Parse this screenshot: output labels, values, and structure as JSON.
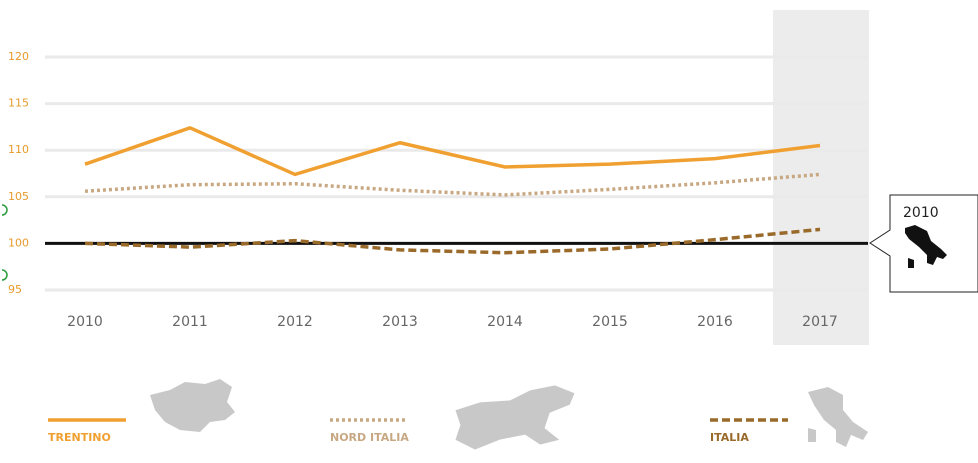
{
  "chart_data": {
    "type": "line",
    "categories": [
      "2010",
      "2011",
      "2012",
      "2013",
      "2014",
      "2015",
      "2016",
      "2017"
    ],
    "series": [
      {
        "name": "TRENTINO",
        "color": "#f0a030",
        "dash": "solid",
        "values": [
          108.5,
          112.4,
          107.4,
          110.8,
          108.2,
          108.5,
          109.1,
          110.5
        ]
      },
      {
        "name": "NORD ITALIA",
        "color": "#c8a882",
        "dash": "dotted",
        "values": [
          105.6,
          106.3,
          106.4,
          105.7,
          105.2,
          105.8,
          106.5,
          107.4
        ]
      },
      {
        "name": "ITALIA",
        "color": "#9a6a2a",
        "dash": "dashed",
        "values": [
          100,
          99.6,
          100.3,
          99.3,
          99.0,
          99.4,
          100.4,
          101.5
        ]
      }
    ],
    "ylim": [
      93,
      122
    ],
    "yticks": [
      95,
      100,
      105,
      110,
      115,
      120
    ],
    "grid": true,
    "baseline": 100,
    "highlight": "2017",
    "tooltip": {
      "label": "2010"
    }
  }
}
